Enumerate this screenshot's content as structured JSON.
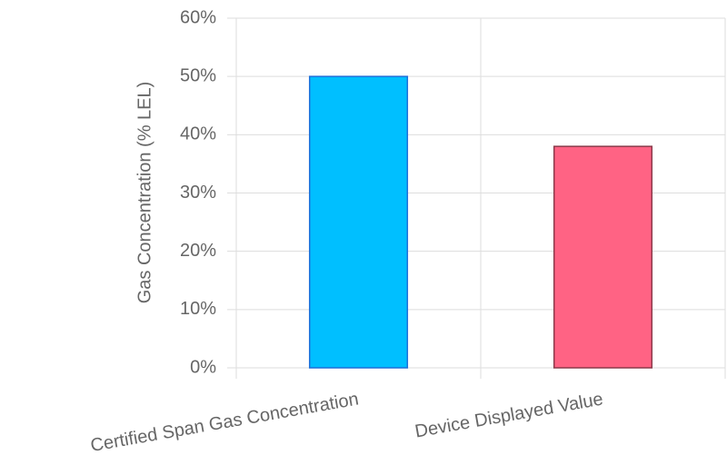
{
  "chart_data": {
    "type": "bar",
    "y_label": "Gas Concentration (% LEL)",
    "categories": [
      "Certified Span Gas Concentration",
      "Device Displayed Value"
    ],
    "values": [
      50,
      38
    ],
    "colors": [
      "#00bfff",
      "#ff6384"
    ],
    "border_colors": [
      "#1e6fd9",
      "#8a3a4a"
    ],
    "ylim": [
      0,
      60
    ],
    "yticks": [
      {
        "value": 0,
        "label": "0%"
      },
      {
        "value": 10,
        "label": "10%"
      },
      {
        "value": 20,
        "label": "20%"
      },
      {
        "value": 30,
        "label": "30%"
      },
      {
        "value": 40,
        "label": "40%"
      },
      {
        "value": 50,
        "label": "50%"
      },
      {
        "value": 60,
        "label": "60%"
      }
    ],
    "grid": true
  }
}
